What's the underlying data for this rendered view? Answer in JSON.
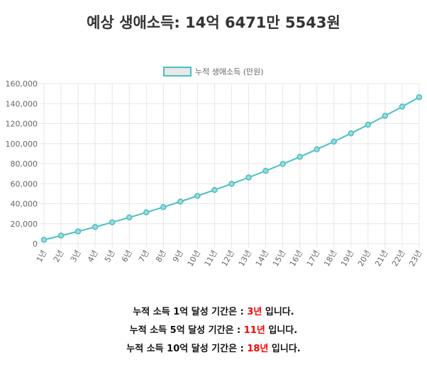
{
  "title": "예상 생애소득: 14억 6471만 5543원",
  "colors": {
    "line": "#4bc0c0",
    "point_fill": "#9ad9d9",
    "legend_box": "#e8e8e8",
    "grid": "#e6e6e6",
    "highlight": "#ff0000"
  },
  "chart_data": {
    "type": "line",
    "legend_position": "top",
    "grid": true,
    "categories": [
      "1년",
      "2년",
      "3년",
      "4년",
      "5년",
      "6년",
      "7년",
      "8년",
      "9년",
      "10년",
      "11년",
      "12년",
      "13년",
      "14년",
      "15년",
      "16년",
      "17년",
      "18년",
      "19년",
      "20년",
      "21년",
      "22년",
      "23년"
    ],
    "series": [
      {
        "name": "누적 생애소득 (만원)",
        "values": [
          3900,
          8100,
          12300,
          16700,
          21400,
          26300,
          31300,
          36600,
          42100,
          47800,
          53700,
          59800,
          66200,
          72800,
          79700,
          86800,
          94300,
          102000,
          110300,
          118900,
          127800,
          137000,
          146500
        ]
      }
    ],
    "ylim": [
      0,
      160000
    ],
    "yticks": [
      "0",
      "20,000",
      "40,000",
      "60,000",
      "80,000",
      "100,000",
      "120,000",
      "140,000",
      "160,000"
    ],
    "ytick_values": [
      0,
      20000,
      40000,
      60000,
      80000,
      100000,
      120000,
      140000,
      160000
    ]
  },
  "summary": [
    {
      "prefix": "누적 소득 1억 달성 기간은 : ",
      "highlight": "3년",
      "suffix": " 입니다."
    },
    {
      "prefix": "누적 소득 5억 달성 기간은 : ",
      "highlight": "11년",
      "suffix": " 입니다."
    },
    {
      "prefix": "누적 소득 10억 달성 기간은 : ",
      "highlight": "18년",
      "suffix": " 입니다."
    }
  ]
}
